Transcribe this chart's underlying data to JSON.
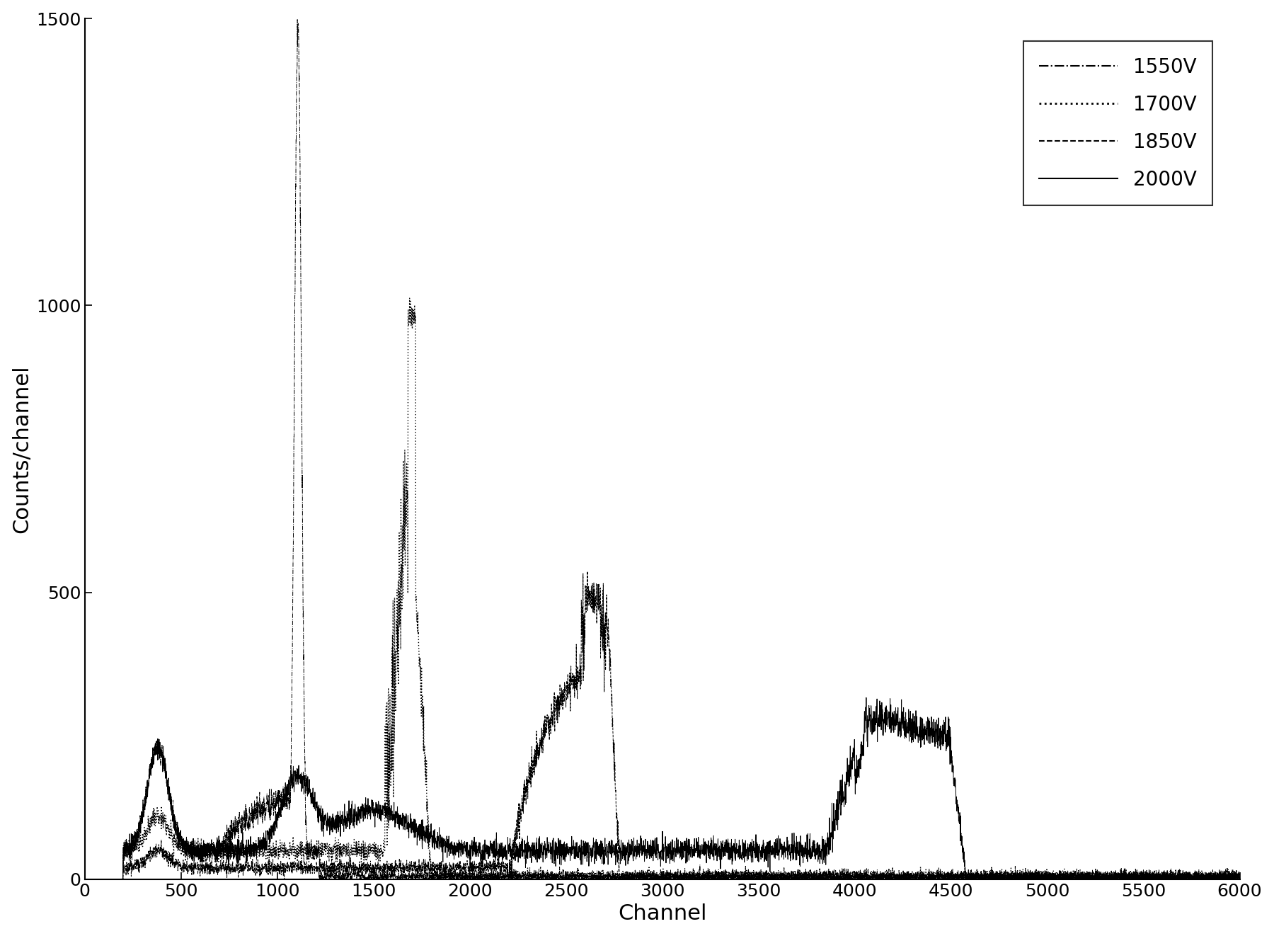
{
  "title": "",
  "xlabel": "Channel",
  "ylabel": "Counts/channel",
  "xlim": [
    0,
    6000
  ],
  "ylim": [
    0,
    1500
  ],
  "xticks": [
    0,
    500,
    1000,
    1500,
    2000,
    2500,
    3000,
    3500,
    4000,
    4500,
    5000,
    5500,
    6000
  ],
  "yticks": [
    0,
    500,
    1000,
    1500
  ],
  "background_color": "#ffffff",
  "line_color": "#000000",
  "legend_labels": [
    "1550V",
    "1700V",
    "1850V",
    "2000V"
  ],
  "figsize": [
    18.0,
    13.22
  ],
  "dpi": 100
}
